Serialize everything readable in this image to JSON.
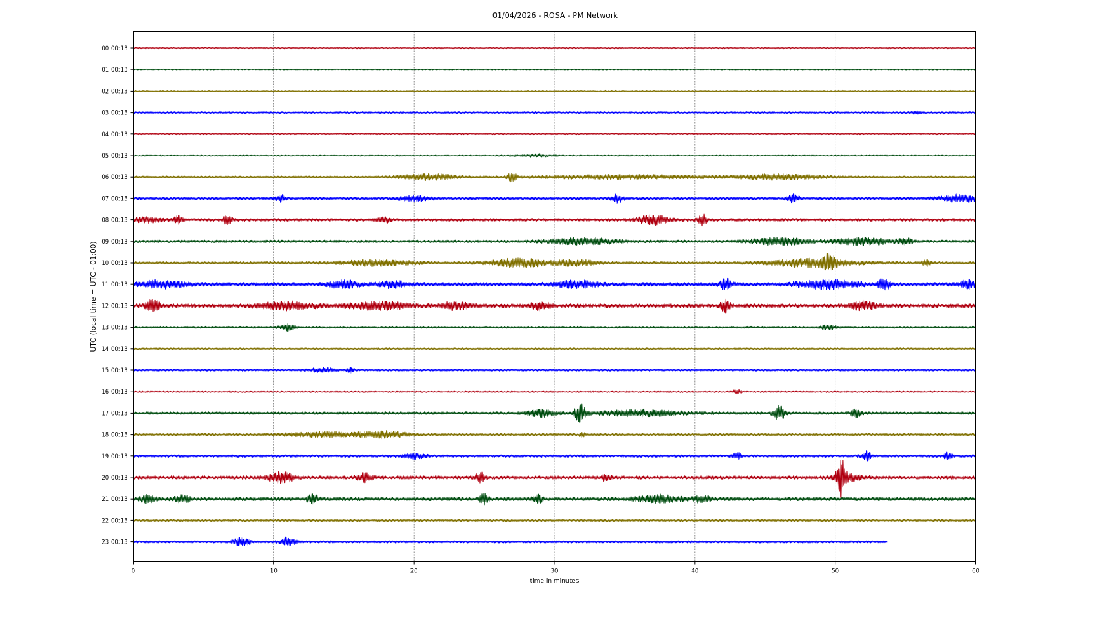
{
  "chart_data": {
    "type": "line",
    "title": "01/04/2026 - ROSA - PM Network",
    "xlabel": "time in minutes",
    "ylabel": "UTC (local time = UTC - 01:00)",
    "xlim": [
      0,
      60
    ],
    "x_ticks": [
      "0",
      "10",
      "20",
      "30",
      "40",
      "50",
      "60"
    ],
    "grid": "vertical dotted at x ticks",
    "colors": [
      "#b00010",
      "#004d10",
      "#807000",
      "#0000ff"
    ],
    "traces": [
      {
        "label": "00:00:13",
        "color": "#b00010",
        "end": 60,
        "noise": 0.7,
        "bursts": []
      },
      {
        "label": "01:00:13",
        "color": "#004d10",
        "end": 60,
        "noise": 0.8,
        "bursts": []
      },
      {
        "label": "02:00:13",
        "color": "#807000",
        "end": 60,
        "noise": 0.9,
        "bursts": []
      },
      {
        "label": "03:00:13",
        "color": "#0000ff",
        "end": 60,
        "noise": 1.0,
        "bursts": [
          [
            55.8,
            0.3,
            2
          ]
        ]
      },
      {
        "label": "04:00:13",
        "color": "#b00010",
        "end": 60,
        "noise": 0.8,
        "bursts": []
      },
      {
        "label": "05:00:13",
        "color": "#004d10",
        "end": 60,
        "noise": 0.8,
        "bursts": [
          [
            28.5,
            1.5,
            1.5
          ]
        ]
      },
      {
        "label": "06:00:13",
        "color": "#807000",
        "end": 60,
        "noise": 1.2,
        "bursts": [
          [
            21,
            2,
            4
          ],
          [
            27,
            0.3,
            7
          ],
          [
            35,
            6,
            2.5
          ],
          [
            46,
            3,
            3.5
          ]
        ]
      },
      {
        "label": "07:00:13",
        "color": "#0000ff",
        "end": 60,
        "noise": 1.8,
        "bursts": [
          [
            10.5,
            0.3,
            5
          ],
          [
            20,
            1,
            3.5
          ],
          [
            34.5,
            0.4,
            6
          ],
          [
            47,
            0.4,
            5
          ],
          [
            59,
            1.5,
            5
          ]
        ]
      },
      {
        "label": "08:00:13",
        "color": "#b00010",
        "end": 60,
        "noise": 1.8,
        "bursts": [
          [
            1,
            1,
            3.5
          ],
          [
            3.2,
            0.3,
            6
          ],
          [
            6.7,
            0.3,
            7
          ],
          [
            17.8,
            0.4,
            5
          ],
          [
            37,
            1,
            7
          ],
          [
            40.5,
            0.3,
            9
          ]
        ]
      },
      {
        "label": "09:00:13",
        "color": "#004d10",
        "end": 60,
        "noise": 1.6,
        "bursts": [
          [
            32,
            2.5,
            4.5
          ],
          [
            46,
            2,
            5
          ],
          [
            52,
            2,
            5
          ],
          [
            55,
            0.5,
            4
          ]
        ]
      },
      {
        "label": "10:00:13",
        "color": "#807000",
        "end": 60,
        "noise": 1.6,
        "bursts": [
          [
            17.5,
            2.5,
            4
          ],
          [
            27.5,
            2,
            6
          ],
          [
            31.5,
            1.5,
            4
          ],
          [
            48.5,
            3,
            6
          ],
          [
            49.6,
            0.3,
            10
          ],
          [
            56.5,
            0.3,
            5
          ]
        ]
      },
      {
        "label": "11:00:13",
        "color": "#0000ff",
        "end": 60,
        "noise": 2.5,
        "bursts": [
          [
            2,
            1.5,
            5
          ],
          [
            15,
            1,
            5
          ],
          [
            18.5,
            1,
            4
          ],
          [
            31.5,
            1.5,
            4.5
          ],
          [
            42.2,
            0.4,
            8
          ],
          [
            49.5,
            2,
            6
          ],
          [
            53.5,
            0.5,
            7
          ],
          [
            59.5,
            0.5,
            6
          ]
        ]
      },
      {
        "label": "12:00:13",
        "color": "#b00010",
        "end": 60,
        "noise": 2.6,
        "bursts": [
          [
            1.4,
            0.5,
            9
          ],
          [
            11,
            2,
            5
          ],
          [
            17.5,
            2,
            5
          ],
          [
            23,
            1,
            5
          ],
          [
            29,
            0.6,
            6
          ],
          [
            42.2,
            0.3,
            10
          ],
          [
            52,
            0.8,
            6
          ]
        ]
      },
      {
        "label": "13:00:13",
        "color": "#004d10",
        "end": 60,
        "noise": 1.2,
        "bursts": [
          [
            11,
            0.5,
            5
          ],
          [
            49.5,
            0.5,
            3
          ]
        ]
      },
      {
        "label": "14:00:13",
        "color": "#807000",
        "end": 60,
        "noise": 1.0,
        "bursts": []
      },
      {
        "label": "15:00:13",
        "color": "#0000ff",
        "end": 60,
        "noise": 1.2,
        "bursts": [
          [
            13.5,
            1,
            3
          ],
          [
            15.5,
            0.2,
            5
          ]
        ]
      },
      {
        "label": "16:00:13",
        "color": "#b00010",
        "end": 60,
        "noise": 1.0,
        "bursts": [
          [
            43,
            0.3,
            3
          ]
        ]
      },
      {
        "label": "17:00:13",
        "color": "#004d10",
        "end": 60,
        "noise": 1.6,
        "bursts": [
          [
            29,
            1,
            5
          ],
          [
            31.8,
            0.4,
            14
          ],
          [
            36,
            3,
            4.5
          ],
          [
            46,
            0.4,
            11
          ],
          [
            51.5,
            0.4,
            6
          ]
        ]
      },
      {
        "label": "18:00:13",
        "color": "#807000",
        "end": 60,
        "noise": 1.4,
        "bursts": [
          [
            14,
            3,
            3.5
          ],
          [
            18,
            1.5,
            4.5
          ],
          [
            32,
            0.2,
            3.5
          ]
        ]
      },
      {
        "label": "19:00:13",
        "color": "#0000ff",
        "end": 60,
        "noise": 1.6,
        "bursts": [
          [
            20,
            0.8,
            3.5
          ],
          [
            43,
            0.3,
            5
          ],
          [
            52.2,
            0.3,
            8
          ],
          [
            58,
            0.3,
            5
          ]
        ]
      },
      {
        "label": "20:00:13",
        "color": "#b00010",
        "end": 60,
        "noise": 2.2,
        "bursts": [
          [
            10.5,
            1,
            7
          ],
          [
            16.5,
            0.5,
            6
          ],
          [
            24.7,
            0.3,
            8
          ],
          [
            33.7,
            0.3,
            6
          ],
          [
            50.4,
            0.3,
            27
          ],
          [
            50.9,
            1,
            5
          ]
        ]
      },
      {
        "label": "21:00:13",
        "color": "#004d10",
        "end": 60,
        "noise": 2.3,
        "bursts": [
          [
            1,
            0.5,
            5
          ],
          [
            3.5,
            0.5,
            5
          ],
          [
            12.8,
            0.4,
            6
          ],
          [
            25,
            0.3,
            8
          ],
          [
            28.8,
            0.3,
            7
          ],
          [
            37.5,
            1.5,
            5
          ],
          [
            40.5,
            0.5,
            5
          ]
        ]
      },
      {
        "label": "22:00:13",
        "color": "#807000",
        "end": 60,
        "noise": 1.4,
        "bursts": []
      },
      {
        "label": "23:00:13",
        "color": "#0000ff",
        "end": 53.7,
        "noise": 1.4,
        "bursts": [
          [
            7.7,
            0.6,
            6
          ],
          [
            11,
            0.5,
            7
          ]
        ]
      }
    ]
  }
}
